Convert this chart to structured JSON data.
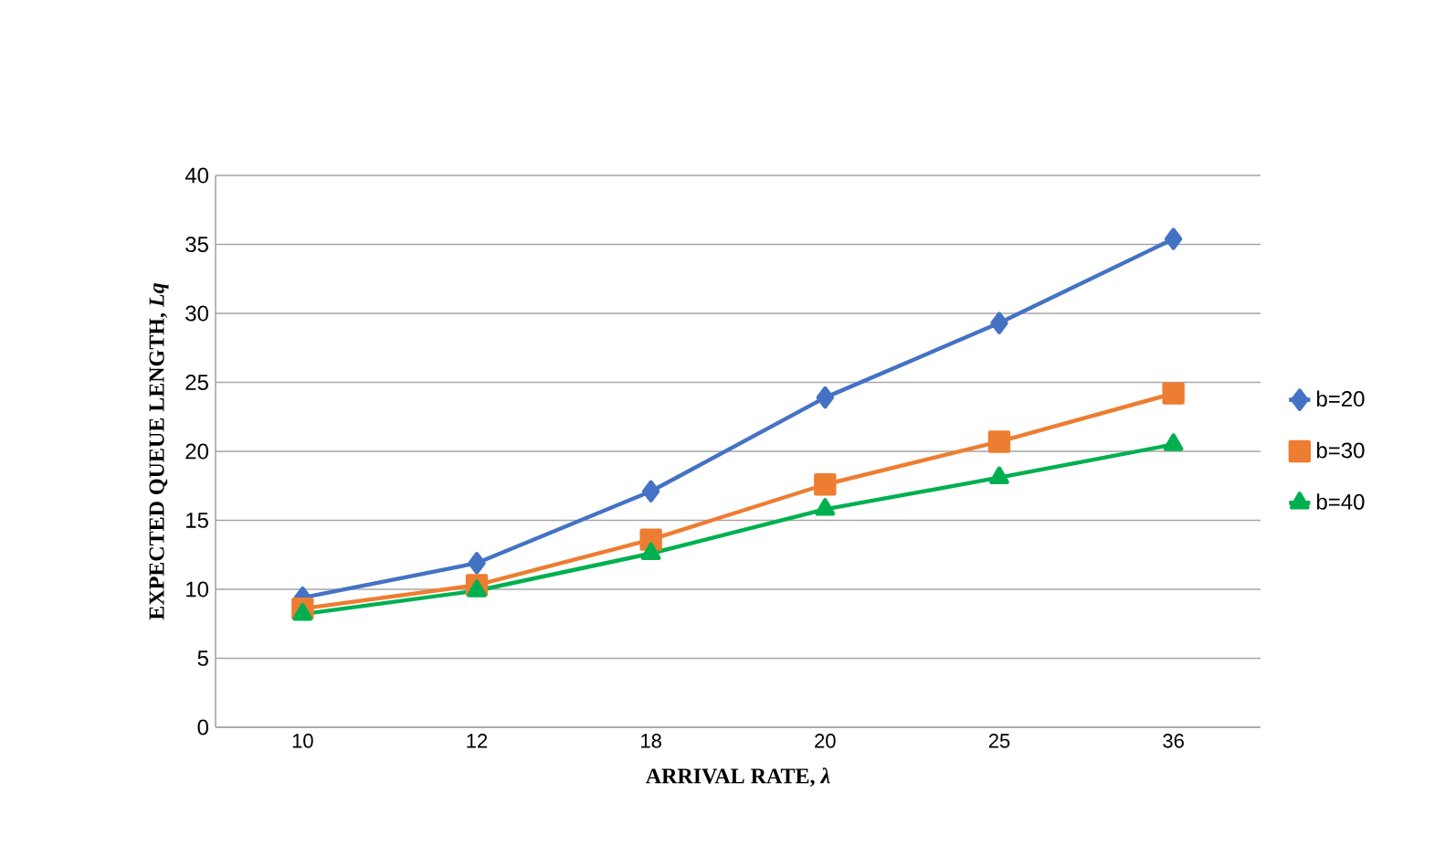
{
  "chart_data": {
    "type": "line",
    "xlabel": "ARRIVAL RATE, *λ*",
    "ylabel": "EXPECTED QUEUE LENGTH, *Lq*",
    "categories": [
      "10",
      "12",
      "18",
      "20",
      "25",
      "36"
    ],
    "series": [
      {
        "name": "b=20",
        "color": "#4472c4",
        "marker": "diamond",
        "values": [
          9.4,
          11.9,
          17.1,
          23.9,
          29.3,
          35.4
        ]
      },
      {
        "name": "b=30",
        "color": "#ed7d31",
        "marker": "square",
        "values": [
          8.6,
          10.3,
          13.6,
          17.6,
          20.7,
          24.2
        ]
      },
      {
        "name": "b=40",
        "color": "#00b050",
        "marker": "triangle",
        "values": [
          8.2,
          9.9,
          12.6,
          15.8,
          18.1,
          20.5
        ]
      }
    ],
    "ylim": [
      0,
      40
    ],
    "yticks": [
      0,
      5,
      10,
      15,
      20,
      25,
      30,
      35,
      40
    ],
    "grid": "y",
    "legend": "right",
    "line_style": "solid"
  }
}
